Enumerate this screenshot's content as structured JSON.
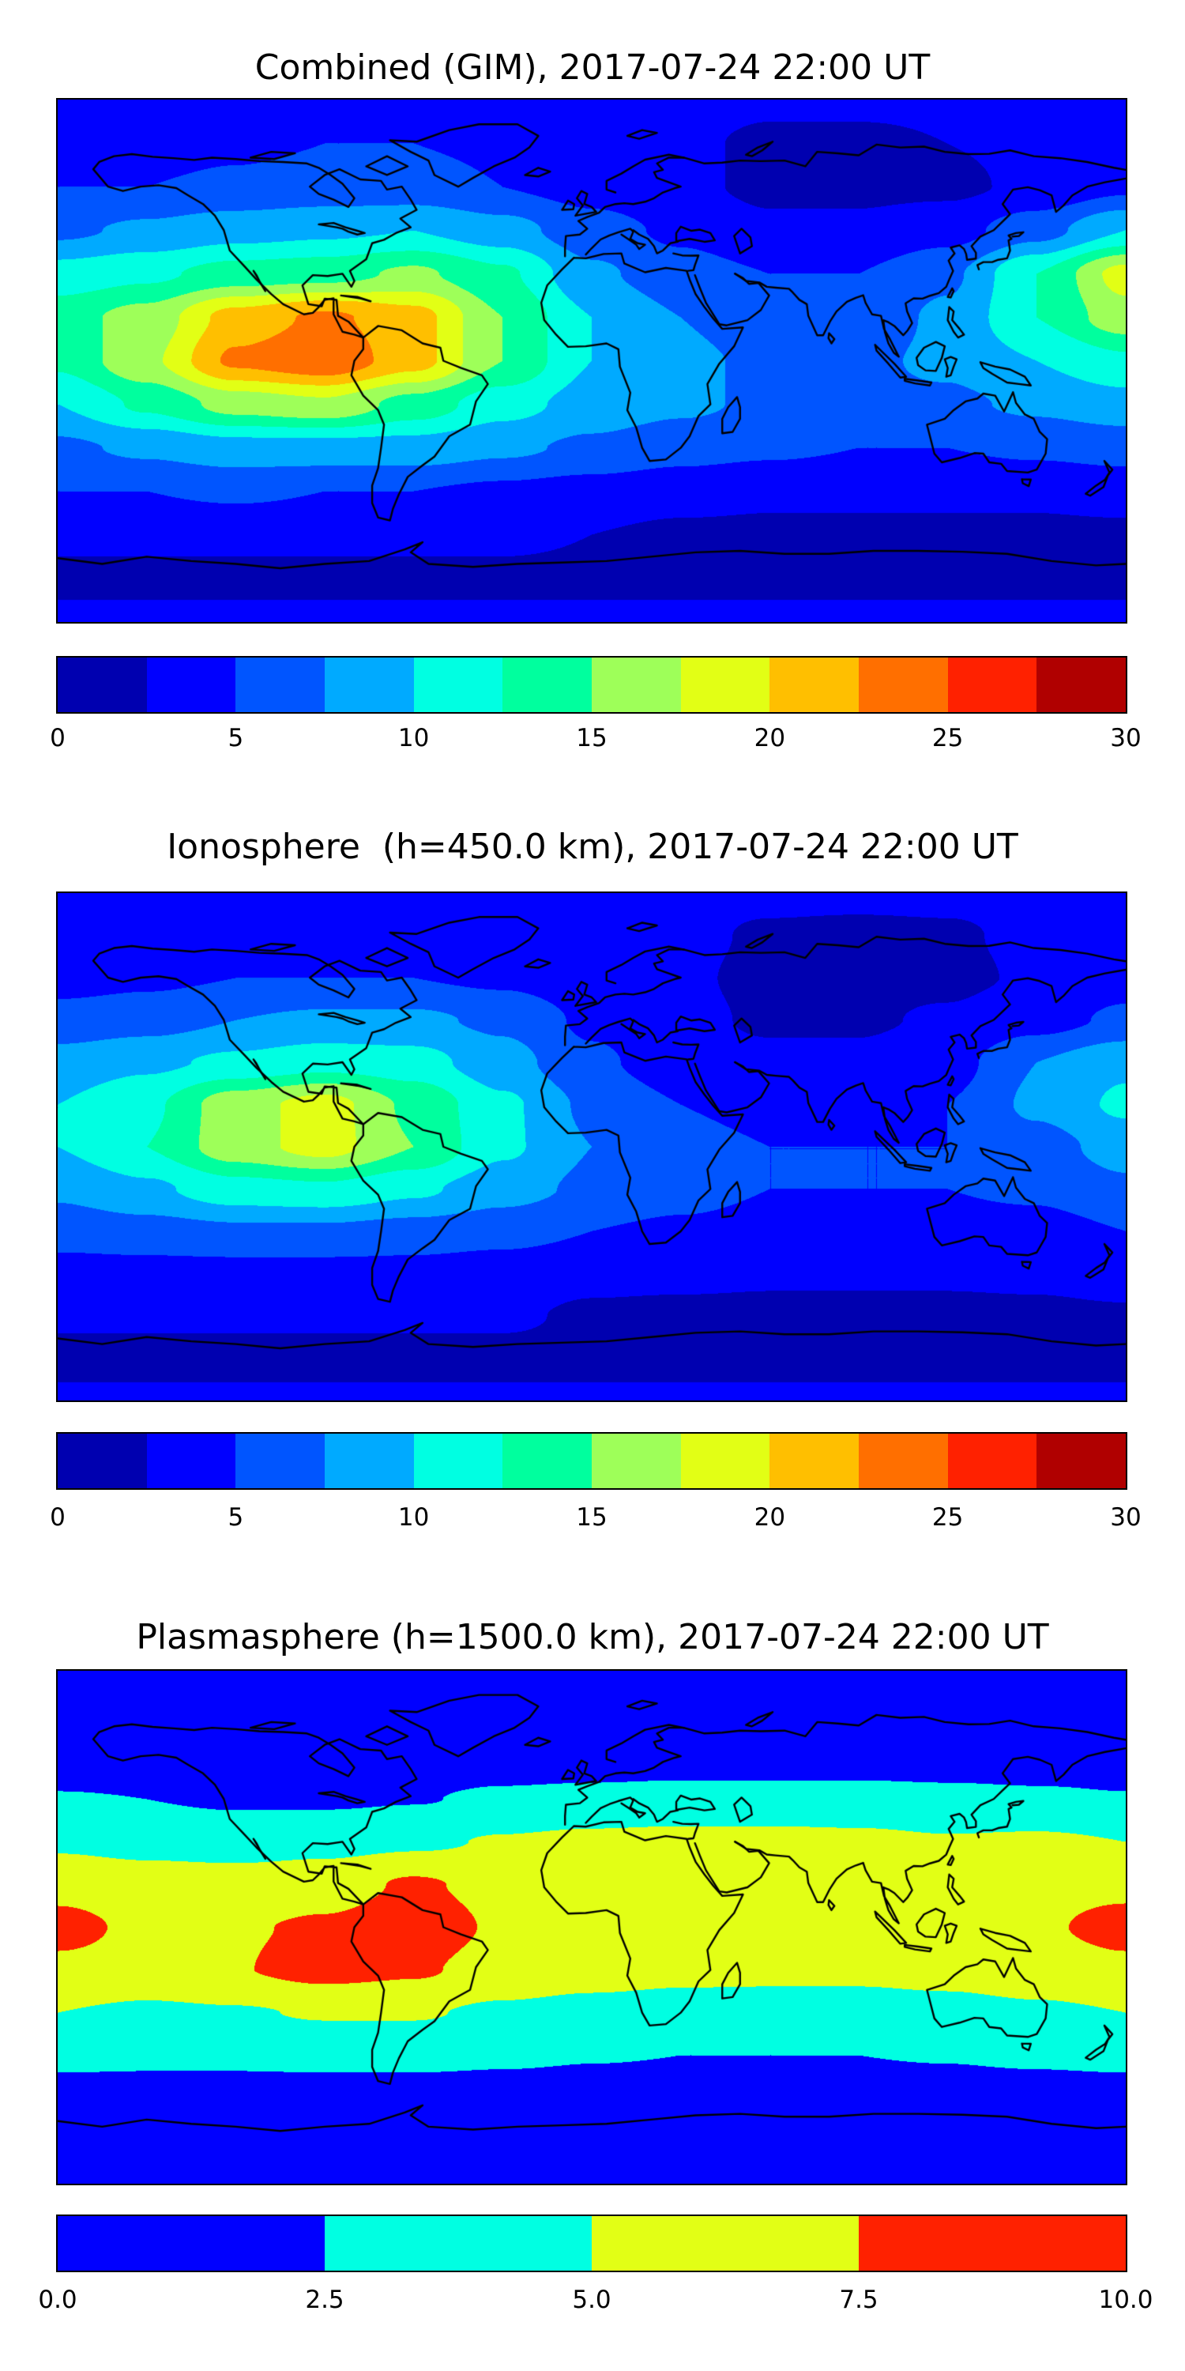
{
  "figure_caption": "Global TEC maps, contourf with jet colormap",
  "chart_data": [
    {
      "type": "heatmap",
      "title": "Combined (GIM), 2017-07-24 22:00 UT",
      "projection": "equirectangular",
      "lon_min": -180,
      "lon_max": 180,
      "lat_min": -90,
      "lat_max": 90,
      "grid": {
        "lon_step": 30,
        "lat_step": 15,
        "row_order": "lat +90 to -90"
      },
      "levels": {
        "min": 0,
        "max": 30,
        "step": 2.5
      },
      "colormap": "jet",
      "colorbar": {
        "tick_labels": [
          "0",
          "5",
          "10",
          "15",
          "20",
          "25",
          "30"
        ],
        "band_colors": [
          "#0000B0",
          "#0000FF",
          "#0055FF",
          "#00AAFF",
          "#00FFE2",
          "#00FF9E",
          "#9EFF59",
          "#E2FF15",
          "#FFBF00",
          "#FF6F00",
          "#FF2100",
          "#B00000"
        ]
      },
      "values": [
        [
          4,
          4,
          4,
          4,
          4,
          4,
          4,
          3.5,
          3,
          3,
          3,
          3.5,
          4
        ],
        [
          4,
          4,
          4.5,
          5,
          5,
          4.5,
          4,
          3,
          2,
          2,
          2.5,
          3,
          4
        ],
        [
          5,
          5,
          5.5,
          6,
          6,
          5,
          4,
          3,
          2,
          2,
          2,
          3,
          4.5
        ],
        [
          7,
          8,
          9,
          9.5,
          10,
          8.5,
          6,
          4.5,
          3,
          3,
          4,
          6.5,
          10
        ],
        [
          11,
          12,
          13.5,
          14,
          15.5,
          13,
          8,
          6,
          5,
          5,
          7,
          12.5,
          18.5
        ],
        [
          14,
          16,
          21,
          23,
          21,
          15,
          10,
          7.5,
          6,
          6,
          8,
          12.5,
          16.5
        ],
        [
          13,
          17,
          23,
          24.5,
          21,
          15,
          10,
          8,
          7,
          7,
          8,
          10,
          12
        ],
        [
          10,
          13,
          16,
          17,
          14,
          11,
          9,
          8,
          7,
          7,
          7,
          8,
          9
        ],
        [
          7,
          8,
          9,
          9,
          9,
          8,
          7,
          6,
          5.5,
          5,
          5,
          5.5,
          6
        ],
        [
          5,
          5,
          5.5,
          5,
          5,
          4.5,
          4,
          3.5,
          3,
          3,
          3,
          3,
          3.5
        ],
        [
          3,
          3,
          3,
          3,
          3,
          3,
          2.5,
          2,
          2,
          2,
          2,
          2,
          2
        ],
        [
          2,
          2,
          2,
          2,
          2,
          2,
          2,
          2,
          2,
          2,
          2,
          2,
          2
        ],
        [
          3,
          3,
          3,
          3,
          3,
          3,
          3,
          3,
          3,
          3,
          3,
          3,
          3
        ]
      ]
    },
    {
      "type": "heatmap",
      "title": "Ionosphere  (h=450.0 km), 2017-07-24 22:00 UT",
      "projection": "equirectangular",
      "lon_min": -180,
      "lon_max": 180,
      "lat_min": -90,
      "lat_max": 90,
      "grid": {
        "lon_step": 30,
        "lat_step": 15,
        "row_order": "lat +90 to -90"
      },
      "levels": {
        "min": 0,
        "max": 30,
        "step": 2.5
      },
      "colormap": "jet",
      "colorbar": {
        "tick_labels": [
          "0",
          "5",
          "10",
          "15",
          "20",
          "25",
          "30"
        ],
        "band_colors": [
          "#0000B0",
          "#0000FF",
          "#0055FF",
          "#00AAFF",
          "#00FFE2",
          "#00FF9E",
          "#9EFF59",
          "#E2FF15",
          "#FFBF00",
          "#FF6F00",
          "#FF2100",
          "#B00000"
        ]
      },
      "values": [
        [
          3,
          3,
          3,
          3,
          3.5,
          3.5,
          3,
          3,
          3,
          3,
          3,
          3,
          3
        ],
        [
          3.5,
          4,
          4,
          4,
          4,
          4,
          3.5,
          3,
          2.2,
          2,
          2.2,
          3,
          3.5
        ],
        [
          4,
          4.5,
          5,
          5,
          5,
          4.5,
          3.5,
          2.8,
          2,
          2,
          2,
          2.8,
          4
        ],
        [
          6,
          6.5,
          7.5,
          8,
          8,
          7,
          4.5,
          3,
          2.2,
          2.2,
          2.8,
          4,
          5.5
        ],
        [
          8.5,
          9.5,
          10.5,
          11.5,
          11,
          8.5,
          5.5,
          3.5,
          3,
          3,
          4,
          7.5,
          9.5
        ],
        [
          10,
          12,
          16.5,
          18.5,
          14.5,
          10.5,
          7,
          5,
          4,
          4,
          5,
          8,
          10.5
        ],
        [
          10,
          12.5,
          16.5,
          18.5,
          15,
          10.5,
          7.5,
          6,
          5,
          5,
          5,
          6.5,
          8.5
        ],
        [
          8,
          9.5,
          11.5,
          12,
          10.5,
          8.5,
          7,
          6,
          5,
          5,
          5,
          5.5,
          7
        ],
        [
          6,
          6.5,
          7,
          7,
          6.5,
          6,
          5,
          4.5,
          4,
          4,
          4,
          4,
          5
        ],
        [
          4,
          4,
          4,
          4,
          4,
          3.5,
          3,
          3,
          2.8,
          2.8,
          2.8,
          3,
          3.5
        ],
        [
          2.8,
          2.8,
          2.8,
          2.8,
          2.8,
          2.8,
          2.2,
          2,
          2,
          2,
          2,
          2,
          2.2
        ],
        [
          2,
          2,
          2,
          2,
          2,
          2,
          2,
          2,
          2,
          2,
          2,
          2,
          2
        ],
        [
          2.8,
          2.8,
          2.8,
          2.8,
          2.8,
          2.8,
          2.8,
          2.8,
          2.8,
          2.8,
          2.8,
          2.8,
          2.8
        ]
      ]
    },
    {
      "type": "heatmap",
      "title": "Plasmasphere (h=1500.0 km), 2017-07-24 22:00 UT",
      "projection": "equirectangular",
      "lon_min": -180,
      "lon_max": 180,
      "lat_min": -90,
      "lat_max": 90,
      "grid": {
        "lon_step": 30,
        "lat_step": 15,
        "row_order": "lat +90 to -90"
      },
      "levels": {
        "min": 0,
        "max": 10,
        "step": 2.5
      },
      "colormap": "jet",
      "colorbar": {
        "tick_labels": [
          "0.0",
          "2.5",
          "5.0",
          "7.5",
          "10.0"
        ],
        "band_colors": [
          "#0000FF",
          "#00FFE2",
          "#E2FF15",
          "#FF2100"
        ]
      },
      "values": [
        [
          1.2,
          1.2,
          1.2,
          1.2,
          1.2,
          1.2,
          1.2,
          1.2,
          1.2,
          1.2,
          1.2,
          1.2,
          1.2
        ],
        [
          1.2,
          1.2,
          1.2,
          1.2,
          1.2,
          1.2,
          1.2,
          1.2,
          1.2,
          1.2,
          1.2,
          1.2,
          1.2
        ],
        [
          1.5,
          1.5,
          1.5,
          1.5,
          1.5,
          1.5,
          1.5,
          1.5,
          1.5,
          1.5,
          1.5,
          1.5,
          1.5
        ],
        [
          2.6,
          2.5,
          2.2,
          2.2,
          2.4,
          2.8,
          3,
          3.2,
          3.2,
          3.2,
          3,
          2.8,
          2.6
        ],
        [
          4.6,
          4.2,
          4,
          4.2,
          4.6,
          5.2,
          5.6,
          5.8,
          5.8,
          5.6,
          5.2,
          5.4,
          5
        ],
        [
          6.8,
          6.2,
          6,
          6.5,
          7.8,
          6.8,
          6.6,
          6.6,
          6.6,
          6.6,
          6.4,
          6.8,
          7
        ],
        [
          8.2,
          7,
          7.3,
          7.8,
          8.7,
          7.2,
          6.6,
          6.4,
          6.4,
          6.4,
          6.6,
          7.2,
          8.2
        ],
        [
          7,
          6.6,
          7.4,
          8.3,
          7.8,
          6.6,
          6,
          5.6,
          5.5,
          5.5,
          5.8,
          6.4,
          7
        ],
        [
          5,
          4.6,
          4.8,
          5.2,
          5.2,
          4.6,
          4.2,
          4,
          4,
          4,
          4.2,
          4.6,
          5
        ],
        [
          3,
          2.9,
          2.9,
          3,
          3,
          2.8,
          2.6,
          2.5,
          2.5,
          2.5,
          2.6,
          2.8,
          3
        ],
        [
          1.6,
          1.6,
          1.6,
          1.6,
          1.6,
          1.6,
          1.6,
          1.6,
          1.6,
          1.6,
          1.6,
          1.6,
          1.6
        ],
        [
          1.2,
          1.2,
          1.2,
          1.2,
          1.2,
          1.2,
          1.2,
          1.2,
          1.2,
          1.2,
          1.2,
          1.2,
          1.2
        ],
        [
          1.2,
          1.2,
          1.2,
          1.2,
          1.2,
          1.2,
          1.2,
          1.2,
          1.2,
          1.2,
          1.2,
          1.2,
          1.2
        ]
      ]
    }
  ]
}
